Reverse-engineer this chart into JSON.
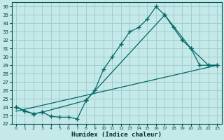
{
  "xlabel": "Humidex (Indice chaleur)",
  "bg_color": "#c5e8e8",
  "grid_color": "#9fcece",
  "line_color": "#006868",
  "xlim_min": -0.5,
  "xlim_max": 23.5,
  "ylim_min": 22,
  "ylim_max": 36.5,
  "yticks": [
    22,
    23,
    24,
    25,
    26,
    27,
    28,
    29,
    30,
    31,
    32,
    33,
    34,
    35,
    36
  ],
  "xticks": [
    0,
    1,
    2,
    3,
    4,
    5,
    6,
    7,
    8,
    9,
    10,
    11,
    12,
    13,
    14,
    15,
    16,
    17,
    18,
    19,
    20,
    21,
    22,
    23
  ],
  "line1_x": [
    0,
    1,
    2,
    3,
    4,
    5,
    6,
    7,
    8,
    9,
    10,
    11,
    12,
    13,
    14,
    15,
    16,
    17,
    18,
    19,
    20,
    21,
    22,
    23
  ],
  "line1_y": [
    24.0,
    23.5,
    23.2,
    23.4,
    22.9,
    22.8,
    22.8,
    22.6,
    24.8,
    26.0,
    28.5,
    30.0,
    31.5,
    33.0,
    33.5,
    34.5,
    36.0,
    35.0,
    33.5,
    32.0,
    31.0,
    29.0,
    29.0,
    29.0
  ],
  "line2_x": [
    0,
    2,
    3,
    8,
    17,
    20,
    22,
    23
  ],
  "line2_y": [
    24.0,
    23.2,
    23.4,
    24.8,
    35.0,
    31.0,
    29.0,
    29.0
  ],
  "line3_x": [
    0,
    23
  ],
  "line3_y": [
    23.5,
    29.0
  ]
}
